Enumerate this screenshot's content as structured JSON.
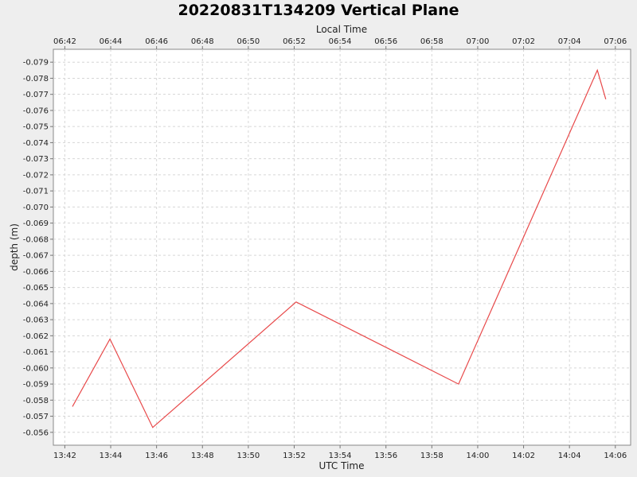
{
  "chart_data": {
    "type": "line",
    "title": "20220831T134209 Vertical Plane",
    "xlabel": "UTC Time",
    "x2label": "Local Time",
    "ylabel": "depth (m)",
    "y_inverted": true,
    "ylim": [
      -0.0552,
      -0.0798
    ],
    "xlim": [
      "13:41:30",
      "14:06:40"
    ],
    "grid": true,
    "x_ticks": [
      "13:42",
      "13:44",
      "13:46",
      "13:48",
      "13:50",
      "13:52",
      "13:54",
      "13:56",
      "13:58",
      "14:00",
      "14:02",
      "14:04",
      "14:06"
    ],
    "x2_ticks": [
      "06:42",
      "06:44",
      "06:46",
      "06:48",
      "06:50",
      "06:52",
      "06:54",
      "06:56",
      "06:58",
      "07:00",
      "07:02",
      "07:04",
      "07:06"
    ],
    "y_ticks": [
      "-0.079",
      "-0.078",
      "-0.077",
      "-0.076",
      "-0.075",
      "-0.074",
      "-0.073",
      "-0.072",
      "-0.071",
      "-0.070",
      "-0.069",
      "-0.068",
      "-0.067",
      "-0.066",
      "-0.065",
      "-0.064",
      "-0.063",
      "-0.062",
      "-0.061",
      "-0.060",
      "-0.059",
      "-0.058",
      "-0.057",
      "-0.056"
    ],
    "series": [
      {
        "color": "#e8494a",
        "x": [
          "13:42:20",
          "13:43:58",
          "13:45:50",
          "13:52:05",
          "13:59:10",
          "14:05:13",
          "14:05:35"
        ],
        "y": [
          -0.0576,
          -0.0618,
          -0.0563,
          -0.0641,
          -0.059,
          -0.0785,
          -0.0767
        ]
      }
    ]
  }
}
